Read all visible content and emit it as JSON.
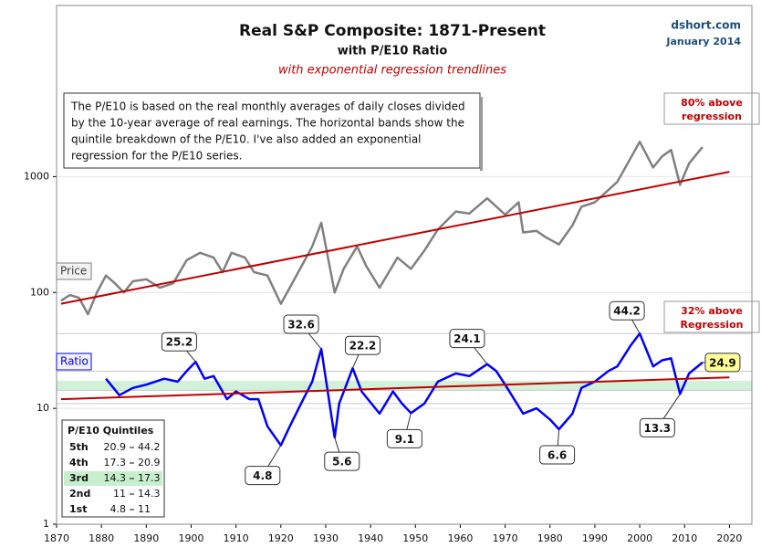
{
  "chart_data": {
    "type": "line",
    "title": "Real S&P Composite: 1871-Present",
    "subtitle": "with P/E10 Ratio",
    "subtitle2": "with exponential regression trendlines",
    "source": "dshort.com",
    "date": "January 2014",
    "note": [
      "The P/E10 is based on the real monthly averages of daily closes divided",
      "by the 10-year average of real earnings. The horizontal  bands show the",
      "quintile breakdown  of the P/E10. I've also added an exponential",
      "regression for the P/E10 series."
    ],
    "log_scale": true,
    "grid": true,
    "xlim": [
      1870,
      2025
    ],
    "ylim": [
      1,
      30000
    ],
    "xticks": [
      1870,
      1880,
      1890,
      1900,
      1910,
      1920,
      1930,
      1940,
      1950,
      1960,
      1970,
      1980,
      1990,
      2000,
      2010,
      2020
    ],
    "yticks": [
      1,
      10,
      100,
      1000
    ],
    "series": [
      {
        "name": "Price",
        "color": "#808080",
        "x": [
          1871,
          1873,
          1875,
          1877,
          1879,
          1881,
          1883,
          1885,
          1887,
          1890,
          1893,
          1896,
          1899,
          1902,
          1905,
          1907,
          1909,
          1912,
          1914,
          1917,
          1920,
          1922,
          1925,
          1927,
          1929,
          1932,
          1934,
          1937,
          1939,
          1942,
          1946,
          1949,
          1952,
          1955,
          1959,
          1962,
          1966,
          1970,
          1973,
          1974,
          1977,
          1979,
          1982,
          1985,
          1987,
          1990,
          1995,
          2000,
          2003,
          2005,
          2007,
          2009,
          2011,
          2014
        ],
        "values": [
          85,
          95,
          90,
          65,
          100,
          140,
          120,
          100,
          125,
          130,
          110,
          120,
          190,
          220,
          200,
          150,
          220,
          200,
          150,
          140,
          80,
          110,
          180,
          250,
          400,
          100,
          160,
          250,
          170,
          110,
          200,
          160,
          230,
          350,
          500,
          480,
          650,
          470,
          600,
          330,
          340,
          300,
          260,
          380,
          550,
          600,
          900,
          2000,
          1200,
          1500,
          1700,
          850,
          1300,
          1800
        ]
      },
      {
        "name": "Ratio",
        "color": "#0000ff",
        "x": [
          1881,
          1884,
          1887,
          1890,
          1894,
          1897,
          1899,
          1901,
          1903,
          1905,
          1908,
          1910,
          1913,
          1915,
          1917,
          1920,
          1922,
          1925,
          1927,
          1929,
          1932,
          1933,
          1936,
          1938,
          1942,
          1945,
          1947,
          1949,
          1952,
          1955,
          1959,
          1962,
          1966,
          1968,
          1970,
          1974,
          1977,
          1980,
          1982,
          1985,
          1987,
          1990,
          1993,
          1995,
          1998,
          2000,
          2003,
          2005,
          2007,
          2009,
          2011,
          2014
        ],
        "values": [
          18,
          13,
          15,
          16,
          18,
          17,
          21,
          25.2,
          18,
          19,
          12,
          14,
          12,
          12,
          7,
          4.8,
          7,
          12,
          17,
          32.6,
          5.6,
          11,
          22.2,
          14,
          9,
          14,
          11,
          9.1,
          11,
          17,
          20,
          19,
          24.1,
          21,
          16,
          9,
          10,
          8,
          6.6,
          9,
          15,
          17,
          21,
          23,
          35,
          44.2,
          23,
          26,
          27,
          13.3,
          20,
          24.9
        ]
      }
    ],
    "trendlines": [
      {
        "color": "#c00000",
        "x": [
          1871,
          2020
        ],
        "values": [
          80,
          1100
        ]
      },
      {
        "color": "#c00000",
        "x": [
          1871,
          2020
        ],
        "values": [
          12,
          18.5
        ]
      }
    ],
    "trend_labels": [
      "80% above regression",
      "32% above Regression"
    ],
    "annotations": [
      {
        "x": 1901,
        "value": 25.2
      },
      {
        "x": 1929,
        "value": 32.6
      },
      {
        "x": 1936,
        "value": 22.2
      },
      {
        "x": 1966,
        "value": 24.1
      },
      {
        "x": 2000,
        "value": 44.2
      },
      {
        "x": 1920,
        "value": 4.8
      },
      {
        "x": 1932,
        "value": 5.6
      },
      {
        "x": 1949,
        "value": 9.1
      },
      {
        "x": 1982,
        "value": 6.6
      },
      {
        "x": 2009,
        "value": 13.3
      }
    ],
    "latest": {
      "x": 2014,
      "value": 24.9
    },
    "quintiles": {
      "title": "P/E10 Quintiles",
      "rows": [
        {
          "name": "5th",
          "low": 20.9,
          "high": 44.2
        },
        {
          "name": "4th",
          "low": 17.3,
          "high": 20.9
        },
        {
          "name": "3rd",
          "low": 14.3,
          "high": 17.3,
          "color": "#c6efce"
        },
        {
          "name": "2nd",
          "low": 11.0,
          "high": 14.3
        },
        {
          "name": "1st",
          "low": 4.8,
          "high": 11.0
        }
      ]
    }
  }
}
